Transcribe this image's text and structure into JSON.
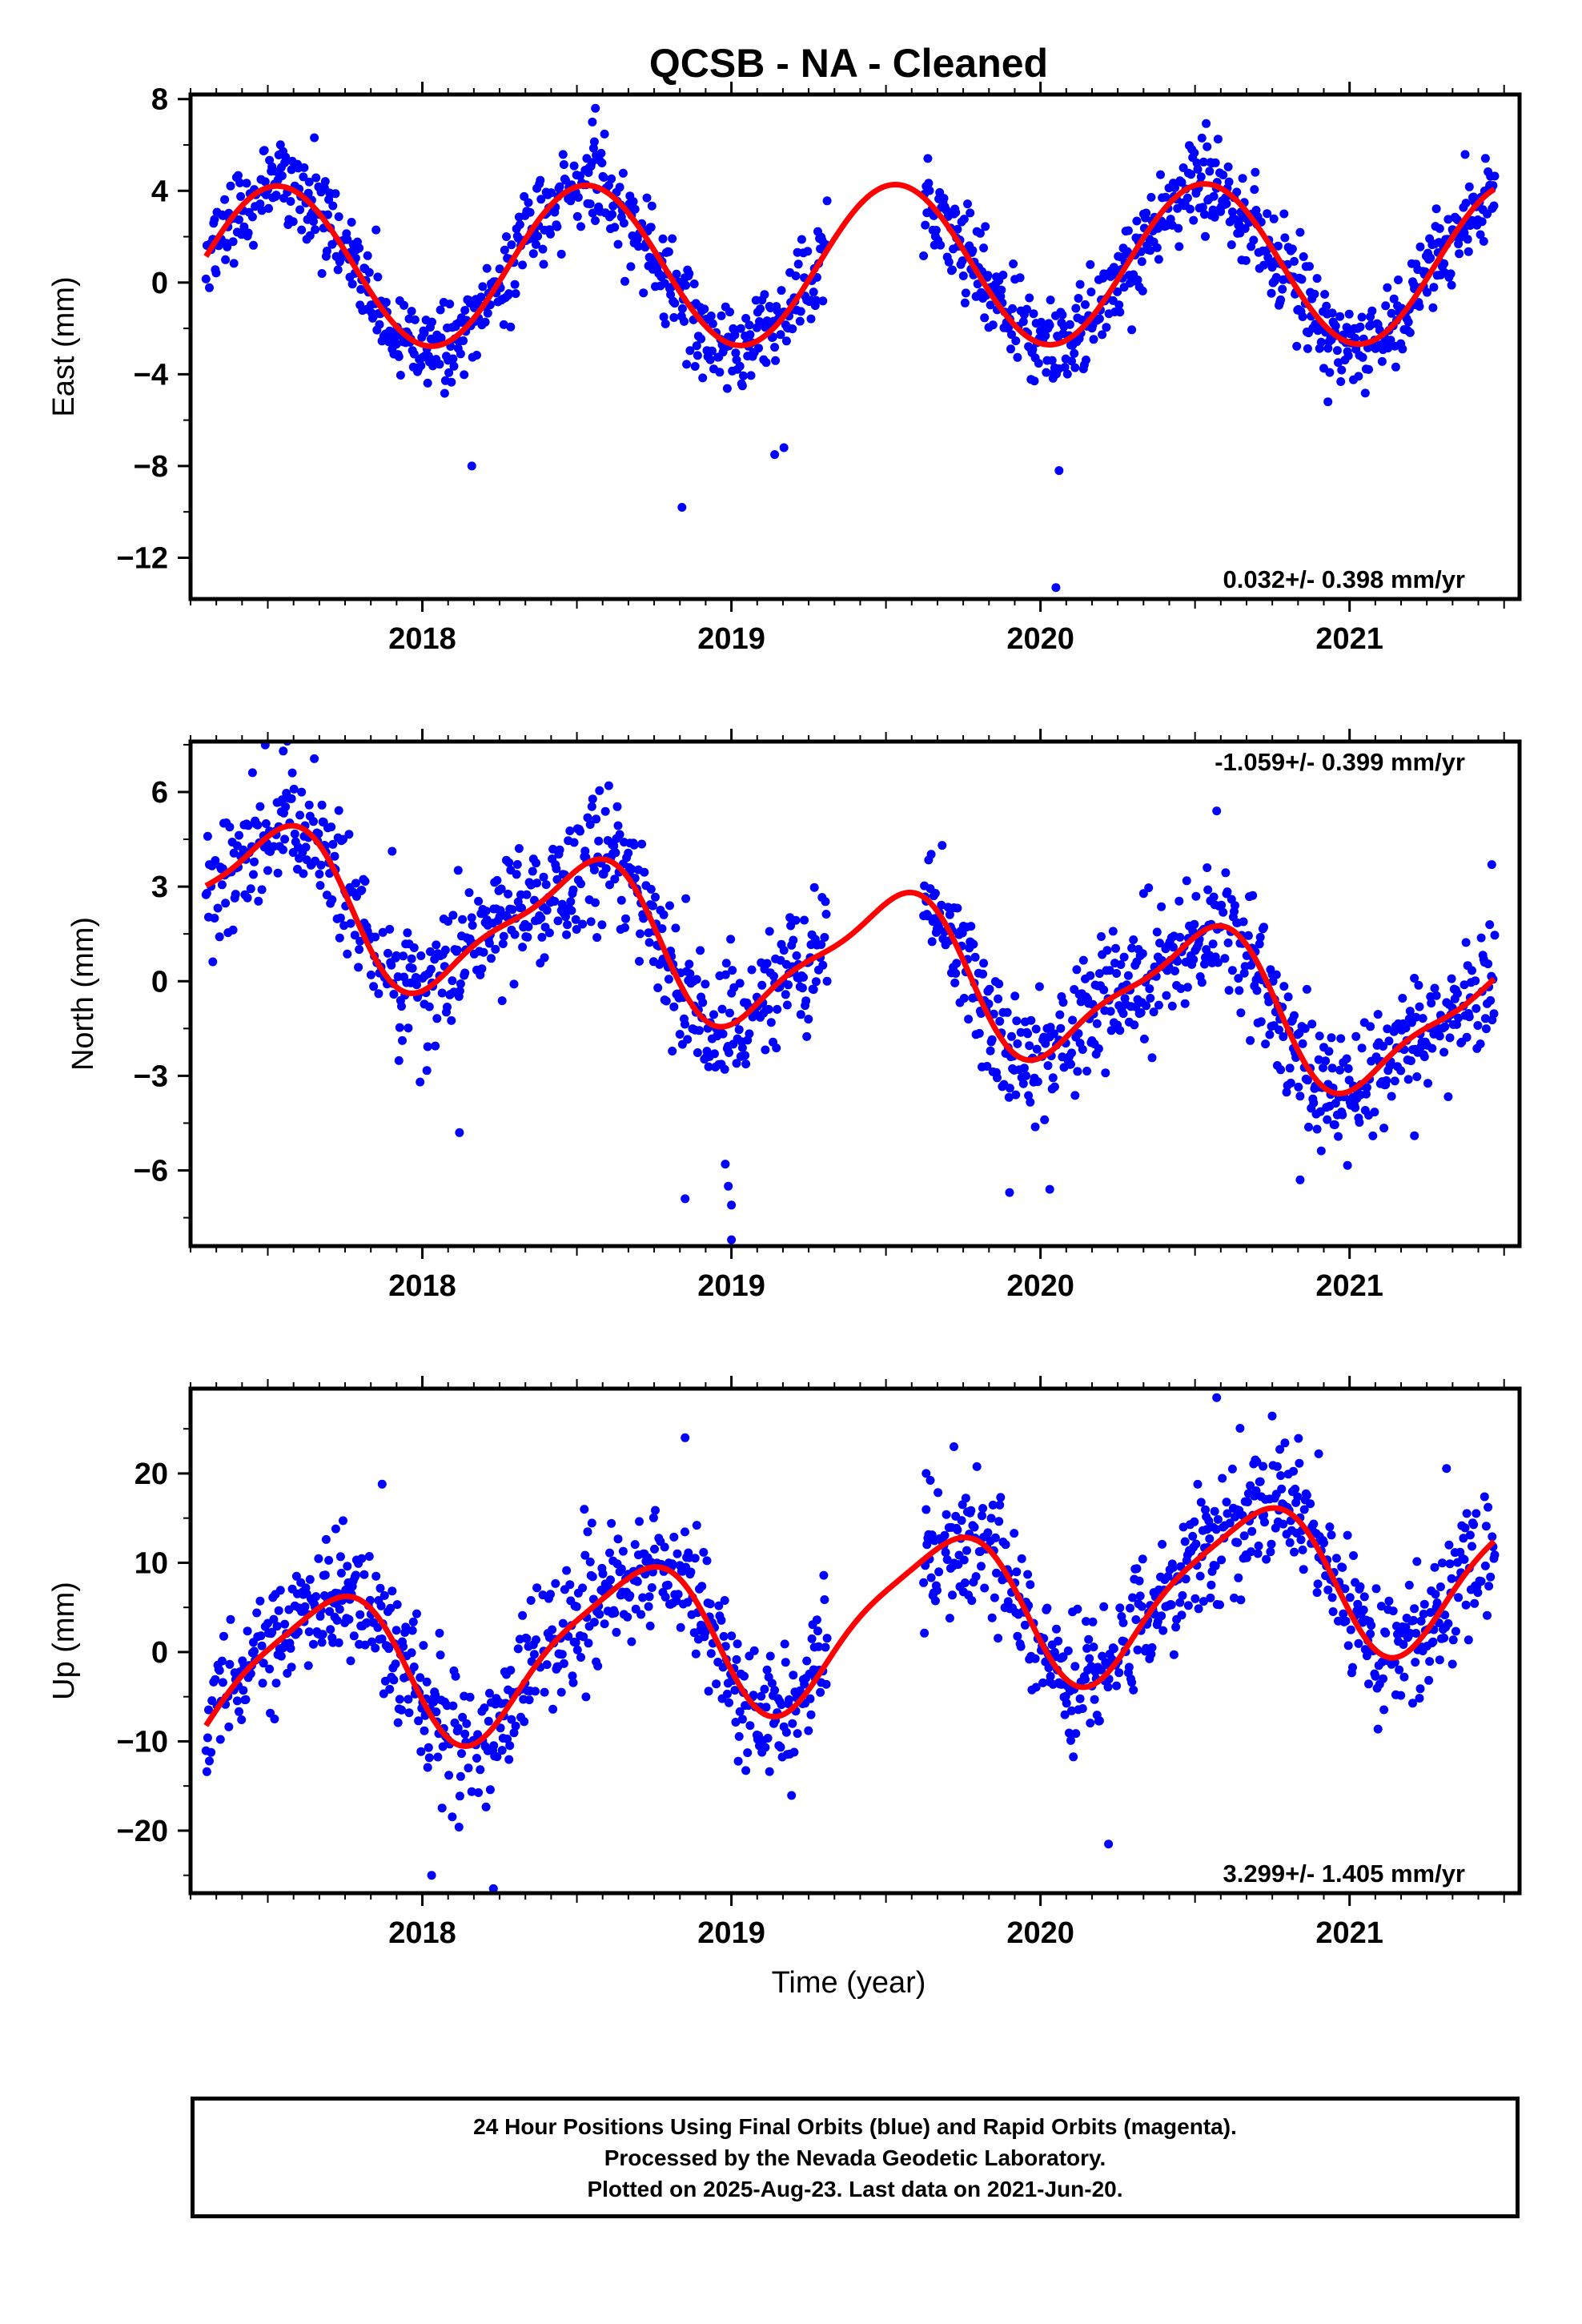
{
  "title": "QCSB  - NA - Cleaned",
  "xlabel": "Time (year)",
  "footer": {
    "line1": "24 Hour Positions Using Final Orbits (blue) and Rapid Orbits (magenta).",
    "line2": "Processed by the Nevada Geodetic Laboratory.",
    "line3": "Plotted on 2025-Aug-23. Last data on 2021-Jun-20."
  },
  "colors": {
    "points": "#0000ff",
    "fit": "#ff0000",
    "axes": "#000000"
  },
  "chart_data": [
    {
      "type": "scatter",
      "ylabel": "East (mm)",
      "rate_text": "0.032+/- 0.398 mm/yr",
      "rate_position": "bottom-right",
      "xlim": [
        2017.25,
        2021.55
      ],
      "ylim": [
        -13.8,
        8.2
      ],
      "yticks": [
        -12,
        -8,
        -4,
        0,
        4,
        8
      ],
      "xticks": [
        2018,
        2019,
        2020,
        2021
      ],
      "fit": {
        "mean": 0.7,
        "trend": 0.032,
        "annual_amp": 3.5,
        "annual_peak": 0.53,
        "semiannual_amp": 0.0,
        "semiannual_peak": 0.0,
        "wiggle_amp": 0.0,
        "wiggle_period": 1.0,
        "wiggle_phase": 0.0,
        "xmin": 2017.3,
        "xmax": 2021.47
      },
      "scatter_sd": 1.0,
      "gaps": [
        [
          2019.31,
          2019.62
        ]
      ],
      "outliers": [
        [
          2018.16,
          -8.0
        ],
        [
          2018.84,
          -9.8
        ],
        [
          2020.06,
          -8.2
        ],
        [
          2020.05,
          -13.3
        ],
        [
          2019.14,
          -7.5
        ],
        [
          2019.17,
          -7.2
        ],
        [
          2018.56,
          7.6
        ],
        [
          2018.55,
          7.0
        ],
        [
          2020.93,
          -5.2
        ]
      ]
    },
    {
      "type": "scatter",
      "ylabel": "North (mm)",
      "rate_text": "-1.059+/- 0.399 mm/yr",
      "rate_position": "top-right",
      "xlim": [
        2017.25,
        2021.55
      ],
      "ylim": [
        -8.4,
        7.6
      ],
      "yticks": [
        -6,
        -3,
        0,
        3,
        6
      ],
      "xticks": [
        2018,
        2019,
        2020,
        2021
      ],
      "fit": {
        "mean": 2.8,
        "trend": -1.059,
        "annual_amp": 2.2,
        "annual_peak": 0.52,
        "semiannual_amp": 0.6,
        "semiannual_peak": 0.15,
        "wiggle_amp": 0.9,
        "wiggle_period": 1.0,
        "wiggle_phase": 0.6,
        "xmin": 2017.3,
        "xmax": 2021.47
      },
      "scatter_sd": 1.0,
      "gaps": [
        [
          2019.31,
          2019.62
        ]
      ],
      "outliers": [
        [
          2018.12,
          -4.8
        ],
        [
          2018.85,
          -6.9
        ],
        [
          2018.99,
          -6.5
        ],
        [
          2019.0,
          -7.1
        ],
        [
          2019.0,
          -8.2
        ],
        [
          2018.98,
          -5.8
        ],
        [
          2019.9,
          -6.7
        ],
        [
          2020.03,
          -6.6
        ],
        [
          2020.57,
          5.4
        ],
        [
          2020.84,
          -6.3
        ],
        [
          2021.21,
          -4.9
        ],
        [
          2017.55,
          7.3
        ],
        [
          2021.46,
          3.7
        ]
      ]
    },
    {
      "type": "scatter",
      "ylabel": "Up (mm)",
      "rate_text": "3.299+/- 1.405 mm/yr",
      "rate_position": "bottom-right",
      "xlim": [
        2017.25,
        2021.55
      ],
      "ylim": [
        -27,
        29.5
      ],
      "yticks": [
        -20,
        -10,
        0,
        10,
        20
      ],
      "xticks": [
        2018,
        2019,
        2020,
        2021
      ],
      "fit": {
        "mean": -3.5,
        "trend": 3.299,
        "annual_amp": 8.5,
        "annual_peak": 0.68,
        "semiannual_amp": 1.8,
        "semiannual_peak": 0.35,
        "wiggle_amp": 0.0,
        "wiggle_period": 1.0,
        "wiggle_phase": 0.0,
        "xmin": 2017.3,
        "xmax": 2021.47
      },
      "scatter_sd": 3.6,
      "gaps": [
        [
          2019.31,
          2019.62
        ]
      ],
      "outliers": [
        [
          2017.72,
          13.8
        ],
        [
          2017.87,
          18.8
        ],
        [
          2018.03,
          -25.0
        ],
        [
          2018.23,
          -26.5
        ],
        [
          2018.85,
          24.0
        ],
        [
          2019.72,
          23.0
        ],
        [
          2019.63,
          20.0
        ],
        [
          2020.22,
          -21.5
        ],
        [
          2020.57,
          28.5
        ],
        [
          2020.9,
          22.2
        ],
        [
          2020.72,
          20.8
        ]
      ]
    }
  ]
}
